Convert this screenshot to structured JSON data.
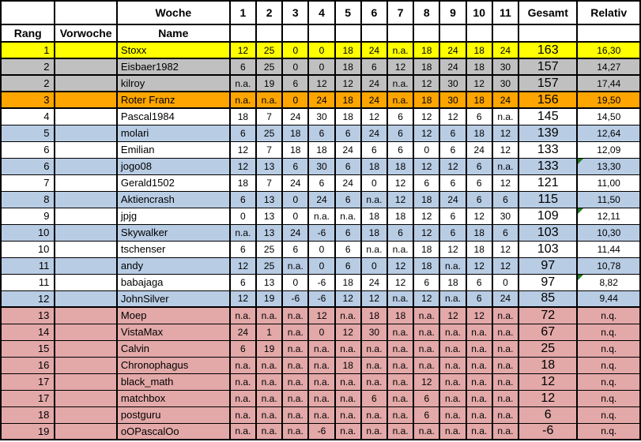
{
  "palette": {
    "yellow": "#FFFF00",
    "gray": "#C0C0C0",
    "orange": "#FFA500",
    "white": "#FFFFFF",
    "blue": "#B8CCE4",
    "pink": "#E3A8A8",
    "grid_line": "#000000",
    "note_triangle_green": "#1E7A1E"
  },
  "header": {
    "woche_label": "Woche",
    "week_numbers": [
      "1",
      "2",
      "3",
      "4",
      "5",
      "6",
      "7",
      "8",
      "9",
      "10",
      "11"
    ],
    "rang_label": "Rang",
    "vorwoche_label": "Vorwoche",
    "name_label": "Name",
    "gesamt_label": "Gesamt",
    "relativ_label": "Relativ"
  },
  "rows": [
    {
      "rank": "1",
      "vorwoche": "",
      "name": "Stoxx",
      "weeks": [
        "12",
        "25",
        "0",
        "0",
        "18",
        "24",
        "n.a.",
        "18",
        "24",
        "18",
        "24"
      ],
      "gesamt": "163",
      "relativ": "16,30",
      "fill": "yellow",
      "note": false
    },
    {
      "rank": "2",
      "vorwoche": "",
      "name": "Eisbaer1982",
      "weeks": [
        "6",
        "25",
        "0",
        "0",
        "18",
        "6",
        "12",
        "18",
        "24",
        "18",
        "30"
      ],
      "gesamt": "157",
      "relativ": "14,27",
      "fill": "gray",
      "note": false
    },
    {
      "rank": "2",
      "vorwoche": "",
      "name": "kilroy",
      "weeks": [
        "n.a.",
        "19",
        "6",
        "12",
        "12",
        "24",
        "n.a.",
        "12",
        "30",
        "12",
        "30"
      ],
      "gesamt": "157",
      "relativ": "17,44",
      "fill": "gray",
      "note": false
    },
    {
      "rank": "3",
      "vorwoche": "",
      "name": "Roter Franz",
      "weeks": [
        "n.a.",
        "n.a.",
        "0",
        "24",
        "18",
        "24",
        "n.a.",
        "18",
        "30",
        "18",
        "24"
      ],
      "gesamt": "156",
      "relativ": "19,50",
      "fill": "orange",
      "note": false
    },
    {
      "rank": "4",
      "vorwoche": "",
      "name": "Pascal1984",
      "weeks": [
        "18",
        "7",
        "24",
        "30",
        "18",
        "12",
        "6",
        "12",
        "12",
        "6",
        "n.a."
      ],
      "gesamt": "145",
      "relativ": "14,50",
      "fill": "white",
      "note": false
    },
    {
      "rank": "5",
      "vorwoche": "",
      "name": "molari",
      "weeks": [
        "6",
        "25",
        "18",
        "6",
        "6",
        "24",
        "6",
        "12",
        "6",
        "18",
        "12"
      ],
      "gesamt": "139",
      "relativ": "12,64",
      "fill": "blue",
      "note": false
    },
    {
      "rank": "6",
      "vorwoche": "",
      "name": "Emilian",
      "weeks": [
        "12",
        "7",
        "18",
        "18",
        "24",
        "6",
        "6",
        "0",
        "6",
        "24",
        "12"
      ],
      "gesamt": "133",
      "relativ": "12,09",
      "fill": "white",
      "note": false
    },
    {
      "rank": "6",
      "vorwoche": "",
      "name": "jogo08",
      "weeks": [
        "12",
        "13",
        "6",
        "30",
        "6",
        "18",
        "18",
        "12",
        "12",
        "6",
        "n.a."
      ],
      "gesamt": "133",
      "relativ": "13,30",
      "fill": "blue",
      "note": true
    },
    {
      "rank": "7",
      "vorwoche": "",
      "name": "Gerald1502",
      "weeks": [
        "18",
        "7",
        "24",
        "6",
        "24",
        "0",
        "12",
        "6",
        "6",
        "6",
        "12"
      ],
      "gesamt": "121",
      "relativ": "11,00",
      "fill": "white",
      "note": false
    },
    {
      "rank": "8",
      "vorwoche": "",
      "name": "Aktiencrash",
      "weeks": [
        "6",
        "13",
        "0",
        "24",
        "6",
        "n.a.",
        "12",
        "18",
        "24",
        "6",
        "6"
      ],
      "gesamt": "115",
      "relativ": "11,50",
      "fill": "blue",
      "note": false
    },
    {
      "rank": "9",
      "vorwoche": "",
      "name": "jpjg",
      "weeks": [
        "0",
        "13",
        "0",
        "n.a.",
        "n.a.",
        "18",
        "18",
        "12",
        "6",
        "12",
        "30"
      ],
      "gesamt": "109",
      "relativ": "12,11",
      "fill": "white",
      "note": true
    },
    {
      "rank": "10",
      "vorwoche": "",
      "name": "Skywalker",
      "weeks": [
        "n.a.",
        "13",
        "24",
        "-6",
        "6",
        "18",
        "6",
        "12",
        "6",
        "18",
        "6"
      ],
      "gesamt": "103",
      "relativ": "10,30",
      "fill": "blue",
      "note": false
    },
    {
      "rank": "10",
      "vorwoche": "",
      "name": "tschenser",
      "weeks": [
        "6",
        "25",
        "6",
        "0",
        "6",
        "n.a.",
        "n.a.",
        "18",
        "12",
        "18",
        "12"
      ],
      "gesamt": "103",
      "relativ": "11,44",
      "fill": "white",
      "note": false
    },
    {
      "rank": "11",
      "vorwoche": "",
      "name": "andy",
      "weeks": [
        "12",
        "25",
        "n.a.",
        "0",
        "6",
        "0",
        "12",
        "18",
        "n.a.",
        "12",
        "12"
      ],
      "gesamt": "97",
      "relativ": "10,78",
      "fill": "blue",
      "note": false
    },
    {
      "rank": "11",
      "vorwoche": "",
      "name": "babajaga",
      "weeks": [
        "6",
        "13",
        "0",
        "-6",
        "18",
        "24",
        "12",
        "6",
        "18",
        "6",
        "0"
      ],
      "gesamt": "97",
      "relativ": "8,82",
      "fill": "white",
      "note": true
    },
    {
      "rank": "12",
      "vorwoche": "",
      "name": "JohnSilver",
      "weeks": [
        "12",
        "19",
        "-6",
        "-6",
        "12",
        "12",
        "n.a.",
        "12",
        "n.a.",
        "6",
        "24"
      ],
      "gesamt": "85",
      "relativ": "9,44",
      "fill": "blue",
      "note": false
    },
    {
      "rank": "13",
      "vorwoche": "",
      "name": "Moep",
      "weeks": [
        "n.a.",
        "n.a.",
        "n.a.",
        "12",
        "n.a.",
        "18",
        "18",
        "n.a.",
        "12",
        "12",
        "n.a."
      ],
      "gesamt": "72",
      "relativ": "n.q.",
      "fill": "pink",
      "note": false
    },
    {
      "rank": "14",
      "vorwoche": "",
      "name": "VistaMax",
      "weeks": [
        "24",
        "1",
        "n.a.",
        "0",
        "12",
        "30",
        "n.a.",
        "n.a.",
        "n.a.",
        "n.a.",
        "n.a."
      ],
      "gesamt": "67",
      "relativ": "n.q.",
      "fill": "pink",
      "note": false
    },
    {
      "rank": "15",
      "vorwoche": "",
      "name": "Calvin",
      "weeks": [
        "6",
        "19",
        "n.a.",
        "n.a.",
        "n.a.",
        "n.a.",
        "n.a.",
        "n.a.",
        "n.a.",
        "n.a.",
        "n.a."
      ],
      "gesamt": "25",
      "relativ": "n.q.",
      "fill": "pink",
      "note": false
    },
    {
      "rank": "16",
      "vorwoche": "",
      "name": "Chronophagus",
      "weeks": [
        "n.a.",
        "n.a.",
        "n.a.",
        "n.a.",
        "18",
        "n.a.",
        "n.a.",
        "n.a.",
        "n.a.",
        "n.a.",
        "n.a."
      ],
      "gesamt": "18",
      "relativ": "n.q.",
      "fill": "pink",
      "note": false
    },
    {
      "rank": "17",
      "vorwoche": "",
      "name": "black_math",
      "weeks": [
        "n.a.",
        "n.a.",
        "n.a.",
        "n.a.",
        "n.a.",
        "n.a.",
        "n.a.",
        "12",
        "n.a.",
        "n.a.",
        "n.a."
      ],
      "gesamt": "12",
      "relativ": "n.q.",
      "fill": "pink",
      "note": false
    },
    {
      "rank": "17",
      "vorwoche": "",
      "name": "matchbox",
      "weeks": [
        "n.a.",
        "n.a.",
        "n.a.",
        "n.a.",
        "n.a.",
        "6",
        "n.a.",
        "6",
        "n.a.",
        "n.a.",
        "n.a."
      ],
      "gesamt": "12",
      "relativ": "n.q.",
      "fill": "pink",
      "note": false
    },
    {
      "rank": "18",
      "vorwoche": "",
      "name": "postguru",
      "weeks": [
        "n.a.",
        "n.a.",
        "n.a.",
        "n.a.",
        "n.a.",
        "n.a.",
        "n.a.",
        "6",
        "n.a.",
        "n.a.",
        "n.a."
      ],
      "gesamt": "6",
      "relativ": "n.q.",
      "fill": "pink",
      "note": false
    },
    {
      "rank": "19",
      "vorwoche": "",
      "name": "oOPascalOo",
      "weeks": [
        "n.a.",
        "n.a.",
        "n.a.",
        "-6",
        "n.a.",
        "n.a.",
        "n.a.",
        "n.a.",
        "n.a.",
        "n.a.",
        "n.a."
      ],
      "gesamt": "-6",
      "relativ": "n.q.",
      "fill": "pink",
      "note": false
    }
  ]
}
